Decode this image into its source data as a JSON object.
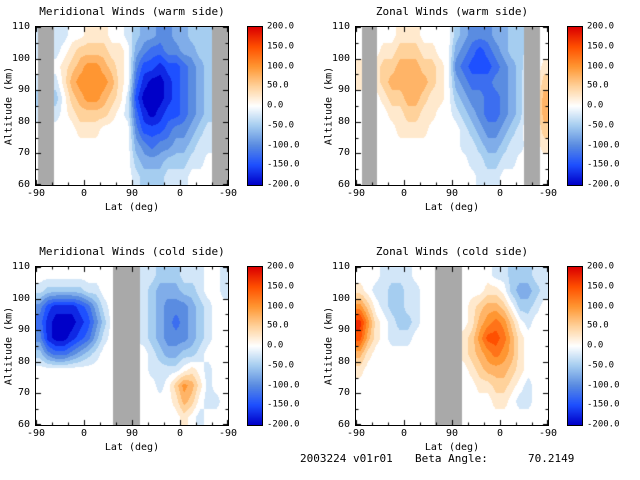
{
  "window": {
    "background": "#ffffff"
  },
  "footer": {
    "dataset_version": "2003224 v01r01",
    "beta_angle_label": "Beta Angle:",
    "beta_angle_value": "70.2149"
  },
  "chart_data": {
    "type": "heatmap",
    "shared_axes": {
      "x_label": "Lat (deg)",
      "x_tick_labels": [
        "-90",
        "0",
        "90",
        "0",
        "-90"
      ],
      "y_label": "Altitude (km)",
      "y_tick_labels": [
        "110",
        "100",
        "90",
        "80",
        "70",
        "60"
      ],
      "y_range": [
        60,
        110
      ]
    },
    "colorbar": {
      "min": -200,
      "max": 200,
      "tick_labels": [
        "200.0",
        "150.0",
        "100.0",
        "50.0",
        "0.0",
        "-50.0",
        "-100.0",
        "-150.0",
        "-200.0"
      ]
    },
    "color_scale": {
      "missing_color": "#a9a9a9",
      "stops": [
        {
          "v": -200,
          "c": "#0000c8"
        },
        {
          "v": -150,
          "c": "#1e50ff"
        },
        {
          "v": -100,
          "c": "#5a8ce1"
        },
        {
          "v": -50,
          "c": "#a5cdf0"
        },
        {
          "v": 0,
          "c": "#ffffff"
        },
        {
          "v": 50,
          "c": "#ffd29b"
        },
        {
          "v": 100,
          "c": "#ff9632"
        },
        {
          "v": 150,
          "c": "#ff5000"
        },
        {
          "v": 200,
          "c": "#dc0000"
        }
      ]
    },
    "contour_interval": 25,
    "panels": [
      {
        "title": "Meridional Winds (warm side)",
        "missing_bands": [
          [
            0.01,
            0.095
          ],
          [
            0.915,
            1.0
          ]
        ],
        "values": [
          [
            null,
            null,
            -25,
            -25,
            0,
            0,
            25,
            25,
            25,
            0,
            0,
            -25,
            -50,
            -75,
            -75,
            -100,
            -100,
            -75,
            -75,
            -50,
            -50,
            -50,
            null,
            null
          ],
          [
            null,
            null,
            -25,
            0,
            25,
            50,
            50,
            50,
            50,
            25,
            25,
            0,
            -75,
            -100,
            -125,
            -125,
            -100,
            -100,
            -75,
            -75,
            -50,
            -50,
            null,
            null
          ],
          [
            null,
            null,
            0,
            25,
            50,
            75,
            100,
            100,
            75,
            50,
            25,
            0,
            -100,
            -150,
            -150,
            -175,
            -150,
            -150,
            -125,
            -100,
            -75,
            -50,
            null,
            null
          ],
          [
            null,
            null,
            -25,
            25,
            75,
            100,
            100,
            100,
            100,
            75,
            25,
            0,
            -125,
            -175,
            -200,
            -200,
            -175,
            -150,
            -125,
            -100,
            -75,
            -50,
            null,
            null
          ],
          [
            null,
            null,
            -50,
            0,
            50,
            75,
            100,
            100,
            75,
            50,
            25,
            -25,
            -150,
            -200,
            -200,
            -200,
            -175,
            -150,
            -125,
            -100,
            -75,
            -50,
            null,
            null
          ],
          [
            null,
            null,
            -25,
            0,
            25,
            50,
            50,
            50,
            50,
            25,
            0,
            -25,
            -125,
            -175,
            -200,
            -175,
            -150,
            -150,
            -125,
            -100,
            -75,
            -50,
            null,
            null
          ],
          [
            null,
            null,
            0,
            0,
            0,
            25,
            25,
            25,
            0,
            0,
            0,
            0,
            -100,
            -150,
            -150,
            -150,
            -125,
            -100,
            -100,
            -75,
            -50,
            -25,
            null,
            null
          ],
          [
            null,
            null,
            0,
            0,
            0,
            0,
            0,
            0,
            0,
            0,
            0,
            0,
            -75,
            -100,
            -125,
            -100,
            -100,
            -75,
            -75,
            -50,
            -25,
            -25,
            null,
            null
          ],
          [
            null,
            null,
            0,
            0,
            0,
            0,
            0,
            0,
            0,
            0,
            0,
            0,
            -50,
            -75,
            -75,
            -75,
            -50,
            -50,
            -50,
            -25,
            -25,
            0,
            null,
            null
          ],
          [
            null,
            null,
            0,
            0,
            0,
            0,
            0,
            0,
            0,
            0,
            0,
            0,
            -25,
            -50,
            -50,
            -50,
            -25,
            -25,
            -25,
            0,
            0,
            0,
            null,
            null
          ]
        ]
      },
      {
        "title": "Zonal Winds (warm side)",
        "missing_bands": [
          [
            0.03,
            0.11
          ],
          [
            0.875,
            0.958
          ]
        ],
        "values": [
          [
            null,
            null,
            0,
            0,
            0,
            25,
            25,
            25,
            0,
            0,
            0,
            0,
            -50,
            -75,
            -100,
            -100,
            -100,
            -75,
            -75,
            -50,
            -50,
            null,
            null,
            0
          ],
          [
            null,
            null,
            0,
            25,
            25,
            50,
            50,
            50,
            25,
            25,
            0,
            0,
            -75,
            -100,
            -125,
            -150,
            -125,
            -100,
            -75,
            -50,
            -50,
            null,
            null,
            0
          ],
          [
            null,
            null,
            25,
            50,
            50,
            75,
            75,
            75,
            50,
            50,
            25,
            0,
            -100,
            -125,
            -150,
            -150,
            -150,
            -125,
            -100,
            -75,
            -50,
            null,
            null,
            25
          ],
          [
            null,
            null,
            25,
            50,
            75,
            75,
            75,
            75,
            75,
            50,
            25,
            0,
            -75,
            -100,
            -125,
            -125,
            -125,
            -100,
            -100,
            -75,
            -50,
            null,
            null,
            50
          ],
          [
            null,
            null,
            0,
            25,
            50,
            50,
            75,
            75,
            50,
            25,
            25,
            0,
            -50,
            -75,
            -100,
            -100,
            -125,
            -125,
            -100,
            -75,
            -50,
            null,
            null,
            75
          ],
          [
            null,
            null,
            0,
            0,
            25,
            25,
            50,
            50,
            25,
            25,
            0,
            0,
            -25,
            -50,
            -75,
            -100,
            -125,
            -125,
            -100,
            -75,
            -50,
            null,
            null,
            75
          ],
          [
            null,
            null,
            0,
            0,
            0,
            25,
            25,
            25,
            25,
            0,
            0,
            0,
            0,
            -25,
            -50,
            -75,
            -100,
            -100,
            -75,
            -50,
            -25,
            null,
            null,
            50
          ],
          [
            null,
            null,
            0,
            0,
            0,
            0,
            0,
            0,
            0,
            0,
            0,
            0,
            0,
            -25,
            -25,
            -50,
            -75,
            -75,
            -50,
            -25,
            -25,
            null,
            null,
            25
          ],
          [
            null,
            null,
            0,
            0,
            0,
            0,
            0,
            0,
            0,
            0,
            0,
            0,
            0,
            0,
            -25,
            -25,
            -50,
            -50,
            -25,
            -25,
            0,
            null,
            null,
            0
          ],
          [
            null,
            null,
            0,
            0,
            0,
            0,
            0,
            0,
            0,
            0,
            0,
            0,
            0,
            0,
            0,
            -25,
            -25,
            -25,
            0,
            0,
            0,
            null,
            null,
            0
          ]
        ]
      },
      {
        "title": "Meridional Winds (cold side)",
        "missing_bands": [
          [
            0.4,
            0.54
          ]
        ],
        "values": [
          [
            0,
            0,
            0,
            0,
            0,
            0,
            0,
            0,
            0,
            0,
            null,
            null,
            null,
            -25,
            -25,
            -50,
            -50,
            -50,
            -25,
            -25,
            -25,
            0,
            0,
            -25
          ],
          [
            -25,
            -50,
            -50,
            -50,
            -50,
            -50,
            -25,
            -25,
            0,
            0,
            null,
            null,
            null,
            -25,
            -50,
            -75,
            -75,
            -75,
            -50,
            -50,
            -25,
            0,
            0,
            -25
          ],
          [
            -100,
            -150,
            -175,
            -175,
            -175,
            -150,
            -125,
            -75,
            -25,
            0,
            null,
            null,
            null,
            -25,
            -50,
            -75,
            -100,
            -100,
            -100,
            -75,
            -50,
            -25,
            0,
            0
          ],
          [
            -125,
            -175,
            -200,
            -200,
            -200,
            -175,
            -150,
            -100,
            -50,
            0,
            null,
            null,
            null,
            -25,
            -50,
            -75,
            -100,
            -125,
            -100,
            -75,
            -50,
            -25,
            0,
            0
          ],
          [
            -100,
            -175,
            -200,
            -200,
            -175,
            -150,
            -125,
            -75,
            -25,
            0,
            null,
            null,
            null,
            -25,
            -50,
            -75,
            -100,
            -100,
            -100,
            -75,
            -50,
            -25,
            0,
            0
          ],
          [
            -50,
            -100,
            -125,
            -125,
            -100,
            -75,
            -50,
            -25,
            0,
            0,
            null,
            null,
            null,
            0,
            -25,
            -50,
            -75,
            -75,
            -50,
            -50,
            -25,
            0,
            0,
            0
          ],
          [
            0,
            0,
            0,
            0,
            0,
            0,
            0,
            0,
            0,
            0,
            null,
            null,
            null,
            0,
            -25,
            -25,
            -25,
            -25,
            0,
            25,
            0,
            -25,
            0,
            0
          ],
          [
            0,
            0,
            0,
            0,
            0,
            0,
            0,
            0,
            0,
            0,
            null,
            null,
            null,
            0,
            0,
            -25,
            0,
            50,
            100,
            75,
            25,
            -25,
            0,
            0
          ],
          [
            0,
            0,
            0,
            0,
            0,
            0,
            0,
            0,
            0,
            0,
            null,
            null,
            null,
            0,
            0,
            0,
            0,
            25,
            75,
            50,
            0,
            -25,
            -25,
            0
          ],
          [
            0,
            0,
            0,
            0,
            0,
            0,
            0,
            0,
            0,
            0,
            null,
            null,
            null,
            0,
            0,
            0,
            0,
            0,
            25,
            0,
            -25,
            0,
            0,
            0
          ]
        ]
      },
      {
        "title": "Zonal Winds (cold side)",
        "missing_bands": [
          [
            0.41,
            0.55
          ]
        ],
        "values": [
          [
            0,
            0,
            0,
            -25,
            -25,
            -25,
            -25,
            0,
            0,
            0,
            null,
            null,
            null,
            0,
            0,
            0,
            0,
            -25,
            -25,
            -50,
            -50,
            -50,
            -25,
            -25
          ],
          [
            25,
            0,
            -25,
            -25,
            -50,
            -50,
            -25,
            -25,
            0,
            0,
            null,
            null,
            null,
            0,
            0,
            0,
            25,
            25,
            0,
            -50,
            -75,
            -75,
            -50,
            -25
          ],
          [
            100,
            50,
            0,
            -25,
            -50,
            -50,
            -25,
            -25,
            0,
            0,
            null,
            null,
            null,
            0,
            25,
            50,
            75,
            75,
            50,
            0,
            -50,
            -50,
            -25,
            0
          ],
          [
            175,
            100,
            25,
            0,
            -25,
            -50,
            -50,
            -25,
            0,
            0,
            null,
            null,
            null,
            0,
            25,
            75,
            100,
            125,
            100,
            50,
            0,
            -25,
            0,
            0
          ],
          [
            150,
            75,
            25,
            0,
            -25,
            -25,
            -25,
            0,
            0,
            0,
            null,
            null,
            null,
            25,
            50,
            100,
            150,
            150,
            125,
            75,
            25,
            0,
            0,
            0
          ],
          [
            75,
            25,
            0,
            0,
            0,
            0,
            0,
            0,
            0,
            0,
            null,
            null,
            null,
            25,
            50,
            75,
            100,
            125,
            100,
            75,
            25,
            0,
            0,
            0
          ],
          [
            25,
            0,
            0,
            0,
            0,
            0,
            0,
            0,
            0,
            0,
            null,
            null,
            null,
            0,
            25,
            50,
            75,
            75,
            75,
            50,
            25,
            0,
            0,
            0
          ],
          [
            0,
            0,
            0,
            0,
            0,
            0,
            0,
            0,
            0,
            0,
            null,
            null,
            null,
            0,
            0,
            25,
            25,
            50,
            50,
            25,
            0,
            -25,
            0,
            0
          ],
          [
            0,
            0,
            0,
            0,
            0,
            0,
            0,
            0,
            0,
            0,
            null,
            null,
            null,
            0,
            0,
            0,
            0,
            25,
            25,
            0,
            -25,
            -25,
            0,
            0
          ],
          [
            0,
            0,
            0,
            0,
            0,
            0,
            0,
            0,
            0,
            0,
            null,
            null,
            null,
            0,
            0,
            0,
            0,
            0,
            0,
            0,
            0,
            0,
            0,
            0
          ]
        ]
      }
    ]
  }
}
